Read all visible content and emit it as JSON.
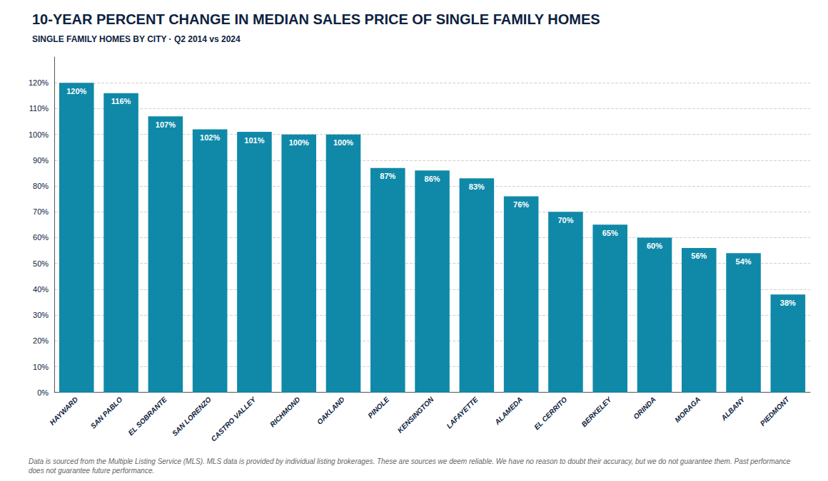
{
  "chart_data": {
    "type": "bar",
    "title": "10-YEAR PERCENT CHANGE IN MEDIAN SALES PRICE OF SINGLE FAMILY HOMES",
    "subtitle": "SINGLE FAMILY HOMES BY CITY · Q2 2014 vs 2024",
    "footnote": "Data is sourced from the Multiple Listing Service (MLS). MLS data is provided by individual listing brokerages. These are sources we deem reliable. We have no reason to doubt their accuracy, but we do not guarantee them. Past performance does not guarantee future performance.",
    "categories": [
      "HAYWARD",
      "SAN PABLO",
      "EL SOBRANTE",
      "SAN LORENZO",
      "CASTRO VALLEY",
      "RICHMOND",
      "OAKLAND",
      "PINOLE",
      "KENSINGTON",
      "LAFAYETTE",
      "ALAMEDA",
      "EL CERRITO",
      "BERKELEY",
      "ORINDA",
      "MORAGA",
      "ALBANY",
      "PIEDMONT"
    ],
    "values": [
      120,
      116,
      107,
      102,
      101,
      100,
      100,
      87,
      86,
      83,
      76,
      70,
      65,
      60,
      56,
      54,
      38
    ],
    "value_labels": [
      "120%",
      "116%",
      "107%",
      "102%",
      "101%",
      "100%",
      "100%",
      "87%",
      "86%",
      "83%",
      "76%",
      "70%",
      "65%",
      "60%",
      "56%",
      "54%",
      "38%"
    ],
    "color": "#1089a8",
    "ylim": [
      0,
      130
    ],
    "yticks": [
      {
        "value": 0,
        "label": "0%"
      },
      {
        "value": 10,
        "label": "10%"
      },
      {
        "value": 20,
        "label": "20%"
      },
      {
        "value": 30,
        "label": "30%"
      },
      {
        "value": 40,
        "label": "40%"
      },
      {
        "value": 50,
        "label": "50%"
      },
      {
        "value": 60,
        "label": "60%"
      },
      {
        "value": 70,
        "label": "70%"
      },
      {
        "value": 80,
        "label": "80%"
      },
      {
        "value": 90,
        "label": "90%"
      },
      {
        "value": 100,
        "label": "100%"
      },
      {
        "value": 110,
        "label": "110%"
      },
      {
        "value": 120,
        "label": "120%"
      }
    ],
    "grid": true,
    "data_labels": true
  }
}
